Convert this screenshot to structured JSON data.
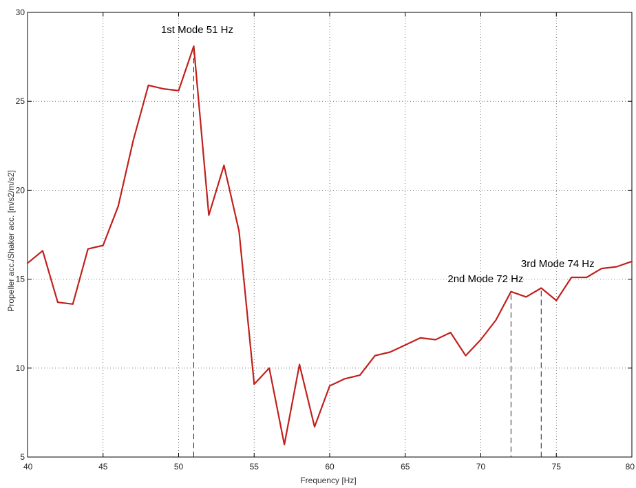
{
  "chart_data": {
    "type": "line",
    "title": "",
    "xlabel": "Frequency [Hz]",
    "ylabel": "Propeller acc./Shaker acc. [m/s2/m/s2]",
    "xlim": [
      40,
      80
    ],
    "ylim": [
      5,
      30
    ],
    "grid": true,
    "x_ticks": [
      40,
      45,
      50,
      55,
      60,
      65,
      70,
      75,
      80
    ],
    "y_ticks": [
      5,
      10,
      15,
      20,
      25,
      30
    ],
    "line_color": "#c0201c",
    "series": [
      {
        "x": [
          40,
          41,
          42,
          43,
          44,
          45,
          46,
          47,
          48,
          49,
          50,
          51,
          52,
          53,
          54,
          55,
          56,
          57,
          58,
          59,
          60,
          61,
          62,
          63,
          64,
          65,
          66,
          67,
          68,
          69,
          70,
          71,
          72,
          73,
          74,
          75,
          76,
          77,
          78,
          79,
          80
        ],
        "values": [
          15.9,
          16.6,
          13.7,
          13.6,
          16.7,
          16.9,
          19.1,
          22.8,
          25.9,
          25.7,
          25.6,
          28.1,
          18.6,
          21.4,
          17.7,
          9.1,
          10.0,
          5.7,
          10.2,
          6.7,
          9.0,
          9.4,
          9.6,
          10.7,
          10.9,
          11.3,
          11.7,
          11.6,
          12.0,
          10.7,
          11.6,
          12.7,
          14.3,
          14.0,
          14.5,
          13.8,
          15.1,
          15.1,
          15.6,
          15.7,
          16.0
        ]
      }
    ],
    "annotations": [
      {
        "text": "1st Mode 51 Hz",
        "x": 51,
        "y": 28.1
      },
      {
        "text": "2nd Mode 72 Hz",
        "x": 72,
        "y": 14.3
      },
      {
        "text": "3rd Mode 74 Hz",
        "x": 74,
        "y": 14.5
      }
    ]
  }
}
